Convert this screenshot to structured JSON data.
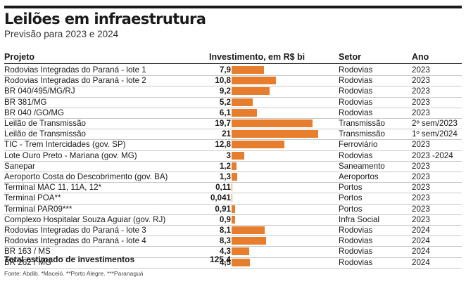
{
  "header": {
    "title": "Leilões em infraestrutura",
    "subtitle": "Previsão para 2023 e 2024"
  },
  "columns": {
    "project": "Projeto",
    "investment": "Investimento, em R$ bi",
    "sector": "Setor",
    "year": "Ano"
  },
  "chart_data": {
    "type": "bar",
    "orientation": "horizontal",
    "title": "Leilões em infraestrutura",
    "subtitle": "Previsão para 2023 e 2024",
    "ylabel": "Investimento, em R$ bi",
    "bar_color": "#e67e2e",
    "rows": [
      {
        "project": "Rodovias Integradas do Paraná - lote 1",
        "label": "7,9",
        "value": 7.9,
        "sector": "Rodovias",
        "year": "2023"
      },
      {
        "project": "Rodovias Integradas do Paraná - lote 2",
        "label": "10,8",
        "value": 10.8,
        "sector": "Rodovias",
        "year": "2023"
      },
      {
        "project": "BR 040/495/MG/RJ",
        "label": "9,2",
        "value": 9.2,
        "sector": "Rodovias",
        "year": "2023"
      },
      {
        "project": "BR 381/MG",
        "label": "5,2",
        "value": 5.2,
        "sector": "Rodovias",
        "year": "2023"
      },
      {
        "project": "BR 040 /GO/MG",
        "label": "6,1",
        "value": 6.1,
        "sector": "Rodovias",
        "year": "2023"
      },
      {
        "project": "Leilão de Transmissão",
        "label": "19,7",
        "value": 19.7,
        "sector": "Transmissão",
        "year": "2º sem/2023"
      },
      {
        "project": "Leilão de Transmissão",
        "label": "21",
        "value": 21,
        "sector": "Transmissão",
        "year": "1º sem/2024"
      },
      {
        "project": "TIC - Trem Intercidades (gov. SP)",
        "label": "12,8",
        "value": 12.8,
        "sector": "Ferroviário",
        "year": "2023"
      },
      {
        "project": "Lote Ouro Preto - Mariana (gov. MG)",
        "label": "3",
        "value": 3,
        "sector": "Rodovias",
        "year": "2023 -2024"
      },
      {
        "project": "Sanepar",
        "label": "1,2",
        "value": 1.2,
        "sector": "Saneamento",
        "year": "2023"
      },
      {
        "project": "Aeroporto Costa do Descobrimento (gov. BA)",
        "label": "1,3",
        "value": 1.3,
        "sector": "Aeroportos",
        "year": "2023"
      },
      {
        "project": "Terminal MAC 11, 11A, 12*",
        "label": "0,11",
        "value": 0.11,
        "sector": "Portos",
        "year": "2023"
      },
      {
        "project": "Terminal POA**",
        "label": "0,041",
        "value": 0.041,
        "sector": "Portos",
        "year": "2023"
      },
      {
        "project": "Terminal PAR09***",
        "label": "0,91",
        "value": 0.91,
        "sector": "Portos",
        "year": "2023"
      },
      {
        "project": "Complexo Hospitalar Souza Aguiar (gov. RJ)",
        "label": "0,9",
        "value": 0.9,
        "sector": "Infra Social",
        "year": "2023"
      },
      {
        "project": "Rodovias Integradas do Paraná - lote 3",
        "label": "8,1",
        "value": 8.1,
        "sector": "Rodovias",
        "year": "2024"
      },
      {
        "project": "Rodovias Integradas do Paraná - lote 4",
        "label": "8,3",
        "value": 8.3,
        "sector": "Rodovias",
        "year": "2024"
      },
      {
        "project": "BR 163 / MS",
        "label": "4,3",
        "value": 4.3,
        "sector": "Rodovias",
        "year": "2024"
      },
      {
        "project": "BR 262 / MG",
        "label": "4,5",
        "value": 4.5,
        "sector": "Rodovias",
        "year": "2024"
      }
    ],
    "xlim": [
      0,
      21
    ]
  },
  "total": {
    "label": "Total estimado de investimentos",
    "value": "125,4"
  },
  "footer": {
    "source": "Fonte: Abdib. *Maceió. **Porto Alegre. ***Paranaguá"
  }
}
